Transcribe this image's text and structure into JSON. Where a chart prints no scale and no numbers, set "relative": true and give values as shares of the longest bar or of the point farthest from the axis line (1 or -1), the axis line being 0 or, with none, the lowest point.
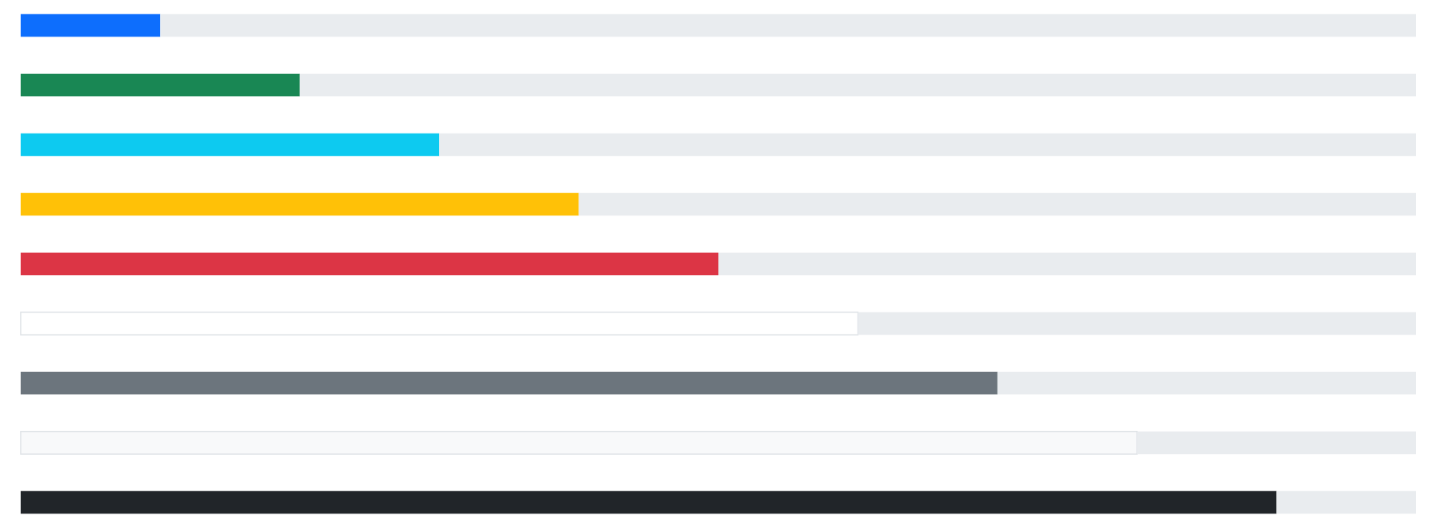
{
  "chart_data": {
    "type": "bar",
    "orientation": "horizontal",
    "stacked": true,
    "relative": true,
    "categories": [
      null,
      null,
      null,
      null,
      null,
      null,
      null,
      null,
      null
    ],
    "series": [
      {
        "colors": [
          "#0d6efd",
          "#198754",
          "#0dcaf0",
          "#ffc107",
          "#dc3545",
          "#ffffff",
          "#6c757d",
          "#f8f9fa",
          "#212529"
        ],
        "values": [
          0.1,
          0.2,
          0.3,
          0.4,
          0.5,
          0.6,
          0.7,
          0.8,
          0.9
        ]
      },
      {
        "color": "#e9ecef",
        "values": [
          0.9,
          0.8,
          0.7,
          0.6,
          0.5,
          0.4,
          0.3,
          0.2,
          0.1
        ]
      }
    ]
  }
}
